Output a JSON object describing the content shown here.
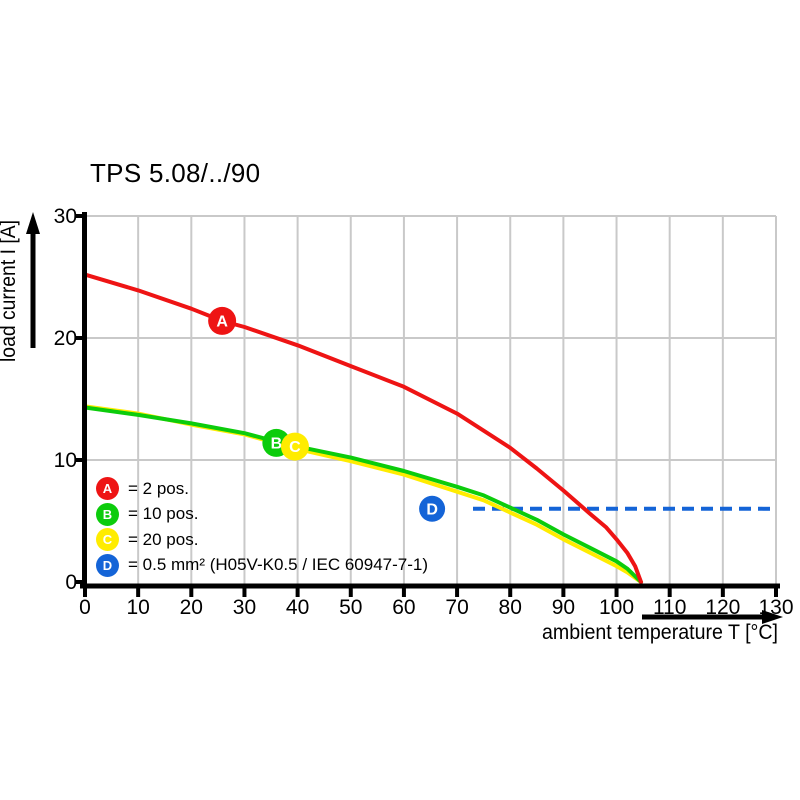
{
  "chart_data": {
    "type": "line",
    "title": "TPS 5.08/../90",
    "xlabel": "ambient temperature T [°C]",
    "ylabel": "load current I [A]",
    "xlim": [
      0,
      130
    ],
    "ylim": [
      0,
      30
    ],
    "xticks": [
      0,
      10,
      20,
      30,
      40,
      50,
      60,
      70,
      80,
      90,
      100,
      110,
      120,
      130
    ],
    "yticks": [
      0,
      10,
      20,
      30
    ],
    "grid": true,
    "grid_color": "#c9c9c9",
    "axis_color": "#000000",
    "background": "#ffffff",
    "legend_position": "inside-bottom-left",
    "series": [
      {
        "name": "A",
        "legend_label": "= 2 pos.",
        "color": "#ee1414",
        "style": "solid",
        "points": [
          [
            0,
            25.2
          ],
          [
            10,
            23.9
          ],
          [
            20,
            22.4
          ],
          [
            25.8,
            21.4
          ],
          [
            30,
            20.9
          ],
          [
            40,
            19.4
          ],
          [
            50,
            17.7
          ],
          [
            60,
            16.0
          ],
          [
            70,
            13.8
          ],
          [
            75,
            12.4
          ],
          [
            80,
            11.0
          ],
          [
            85,
            9.3
          ],
          [
            90,
            7.5
          ],
          [
            95,
            5.6
          ],
          [
            98,
            4.5
          ],
          [
            100,
            3.5
          ],
          [
            102,
            2.4
          ],
          [
            103.5,
            1.3
          ],
          [
            104.6,
            0
          ]
        ],
        "marker": {
          "x": 25.8,
          "y": 21.4
        }
      },
      {
        "name": "B",
        "legend_label": "= 10 pos.",
        "color": "#0ccc0c",
        "style": "solid",
        "points": [
          [
            0,
            14.3
          ],
          [
            10,
            13.7
          ],
          [
            20,
            13.0
          ],
          [
            30,
            12.2
          ],
          [
            36,
            11.5
          ],
          [
            40,
            11.1
          ],
          [
            50,
            10.2
          ],
          [
            60,
            9.1
          ],
          [
            70,
            7.8
          ],
          [
            75,
            7.1
          ],
          [
            80,
            6.1
          ],
          [
            85,
            5.1
          ],
          [
            90,
            3.9
          ],
          [
            95,
            2.8
          ],
          [
            100,
            1.7
          ],
          [
            102,
            1.1
          ],
          [
            104.6,
            0
          ]
        ],
        "marker": {
          "x": 36,
          "y": 11.4
        }
      },
      {
        "name": "C",
        "legend_label": "= 20 pos.",
        "color": "#ffec00",
        "style": "solid",
        "points": [
          [
            0,
            14.4
          ],
          [
            10,
            13.8
          ],
          [
            20,
            12.9
          ],
          [
            30,
            12.1
          ],
          [
            40,
            10.9
          ],
          [
            50,
            9.9
          ],
          [
            60,
            8.8
          ],
          [
            70,
            7.4
          ],
          [
            75,
            6.7
          ],
          [
            80,
            5.7
          ],
          [
            85,
            4.7
          ],
          [
            90,
            3.5
          ],
          [
            95,
            2.4
          ],
          [
            100,
            1.3
          ],
          [
            102,
            0.8
          ],
          [
            104.6,
            0
          ]
        ],
        "marker": {
          "x": 39.5,
          "y": 11.1
        }
      },
      {
        "name": "D",
        "legend_label": "= 0.5 mm² (H05V-K0.5 / IEC 60947-7-1)",
        "color": "#1464d7",
        "style": "dashed",
        "points": [
          [
            73,
            6
          ],
          [
            130,
            6
          ]
        ],
        "marker": {
          "x": 65.3,
          "y": 6
        }
      }
    ]
  }
}
